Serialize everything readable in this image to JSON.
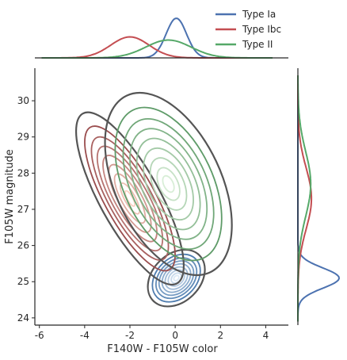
{
  "chart_data": {
    "type": "kde-joint",
    "xlabel": "F140W - F105W color",
    "ylabel": "F105W magnitude",
    "xlim": [
      -6.2,
      5.0
    ],
    "ylim": [
      23.8,
      30.9
    ],
    "xticks": [
      -6,
      -4,
      -2,
      0,
      2,
      4
    ],
    "yticks": [
      24,
      25,
      26,
      27,
      28,
      29,
      30
    ],
    "legend_position": "top-right",
    "grid": false,
    "series": [
      {
        "name": "Type Ia",
        "color": "#4c72b0",
        "contour_palette": [
          "#dce9f5",
          "#3b6ea5"
        ],
        "center": [
          0.05,
          25.1
        ],
        "color_sd": 0.45,
        "magnitude_sd": 0.28,
        "correlation": 0.3
      },
      {
        "name": "Type Ibc",
        "color": "#c44e52",
        "contour_palette": [
          "#fbd2c4",
          "#8c3a3d"
        ],
        "center": [
          -2.0,
          27.3
        ],
        "color_sd": 0.85,
        "magnitude_sd": 0.85,
        "correlation": -0.78
      },
      {
        "name": "Type II",
        "color": "#55a868",
        "contour_palette": [
          "#d8eed7",
          "#4d8f58"
        ],
        "center": [
          -0.3,
          27.7
        ],
        "color_sd": 1.0,
        "magnitude_sd": 0.9,
        "correlation": -0.45
      }
    ],
    "outer_contour_color": "#555555"
  }
}
